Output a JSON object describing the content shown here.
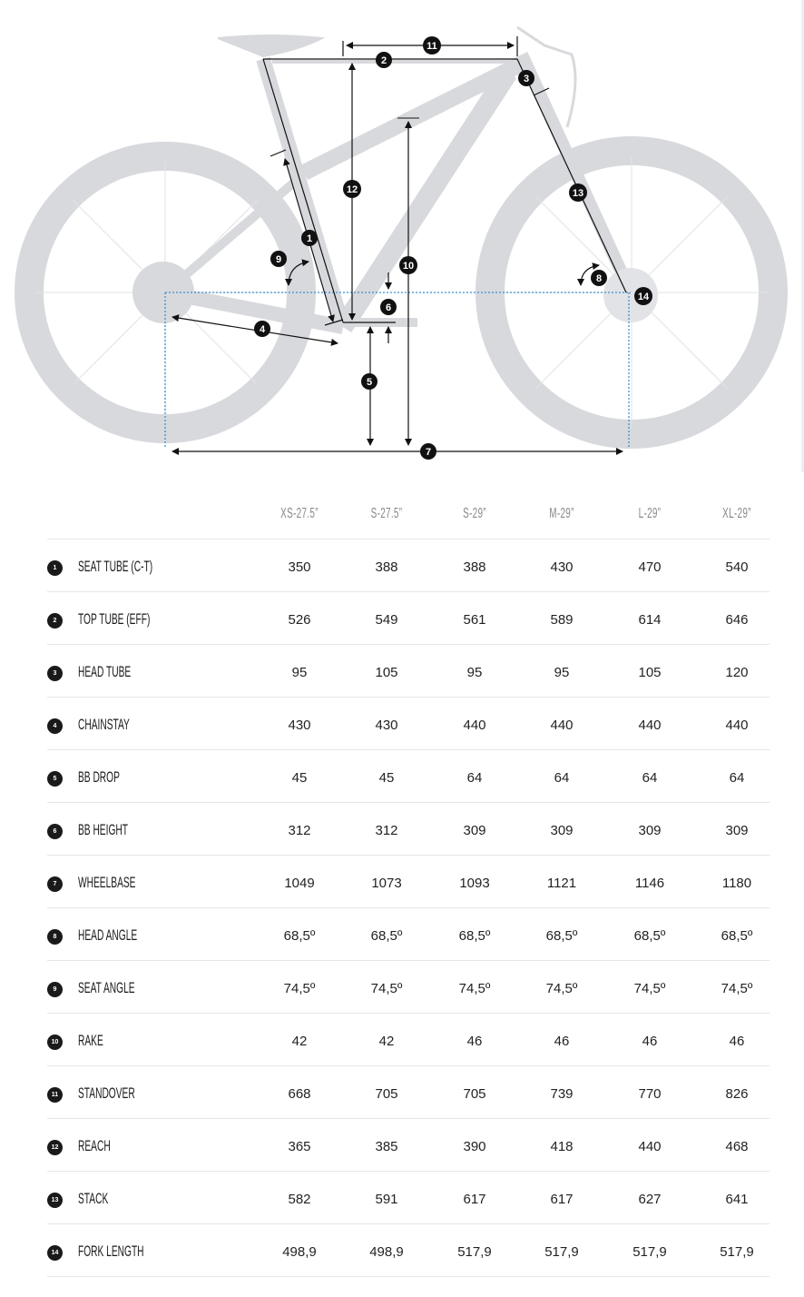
{
  "diagram": {
    "markers": [
      "1",
      "2",
      "3",
      "4",
      "5",
      "6",
      "7",
      "8",
      "9",
      "10",
      "11",
      "12",
      "13",
      "14"
    ],
    "colors": {
      "bike": "#d8d9dd",
      "lines": "#111111",
      "guide": "#3a8fd0"
    }
  },
  "table": {
    "sizes": [
      "XS-27.5”",
      "S-27.5”",
      "S-29”",
      "M-29”",
      "L-29”",
      "XL-29”"
    ],
    "rows": [
      {
        "num": "1",
        "label": "SEAT TUBE (C-T)",
        "values": [
          "350",
          "388",
          "388",
          "430",
          "470",
          "540"
        ]
      },
      {
        "num": "2",
        "label": "TOP TUBE (EFF)",
        "values": [
          "526",
          "549",
          "561",
          "589",
          "614",
          "646"
        ]
      },
      {
        "num": "3",
        "label": "HEAD TUBE",
        "values": [
          "95",
          "105",
          "95",
          "95",
          "105",
          "120"
        ]
      },
      {
        "num": "4",
        "label": "CHAINSTAY",
        "values": [
          "430",
          "430",
          "440",
          "440",
          "440",
          "440"
        ]
      },
      {
        "num": "5",
        "label": "BB DROP",
        "values": [
          "45",
          "45",
          "64",
          "64",
          "64",
          "64"
        ]
      },
      {
        "num": "6",
        "label": "BB HEIGHT",
        "values": [
          "312",
          "312",
          "309",
          "309",
          "309",
          "309"
        ]
      },
      {
        "num": "7",
        "label": "WHEELBASE",
        "values": [
          "1049",
          "1073",
          "1093",
          "1121",
          "1146",
          "1180"
        ]
      },
      {
        "num": "8",
        "label": "HEAD ANGLE",
        "values": [
          "68,5º",
          "68,5º",
          "68,5º",
          "68,5º",
          "68,5º",
          "68,5º"
        ]
      },
      {
        "num": "9",
        "label": "SEAT ANGLE",
        "values": [
          "74,5º",
          "74,5º",
          "74,5º",
          "74,5º",
          "74,5º",
          "74,5º"
        ]
      },
      {
        "num": "10",
        "label": "RAKE",
        "values": [
          "42",
          "42",
          "46",
          "46",
          "46",
          "46"
        ]
      },
      {
        "num": "11",
        "label": "STANDOVER",
        "values": [
          "668",
          "705",
          "705",
          "739",
          "770",
          "826"
        ]
      },
      {
        "num": "12",
        "label": "REACH",
        "values": [
          "365",
          "385",
          "390",
          "418",
          "440",
          "468"
        ]
      },
      {
        "num": "13",
        "label": "STACK",
        "values": [
          "582",
          "591",
          "617",
          "617",
          "627",
          "641"
        ]
      },
      {
        "num": "14",
        "label": "FORK LENGTH",
        "values": [
          "498,9",
          "498,9",
          "517,9",
          "517,9",
          "517,9",
          "517,9"
        ]
      }
    ]
  }
}
